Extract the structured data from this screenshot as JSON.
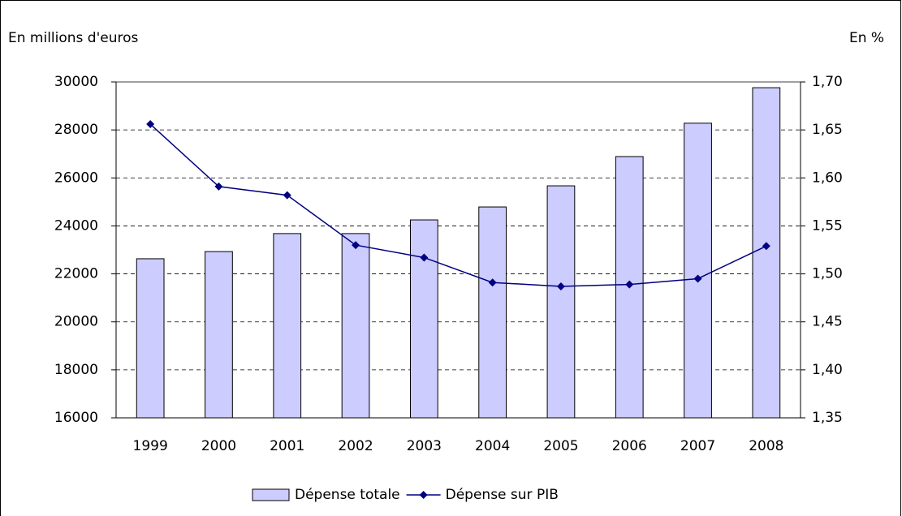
{
  "chart_data": {
    "type": "combo",
    "y_label": "En millions d'euros",
    "y2_label": "En %",
    "categories": [
      "1999",
      "2000",
      "2001",
      "2002",
      "2003",
      "2004",
      "2005",
      "2006",
      "2007",
      "2008"
    ],
    "series": [
      {
        "name": "Dépense totale",
        "type": "bar",
        "color": "#ccccff",
        "values": [
          22630,
          22930,
          23680,
          23680,
          24250,
          24790,
          25670,
          26890,
          28280,
          29760
        ]
      },
      {
        "name": "Dépense sur PIB",
        "type": "line",
        "axis": "y2",
        "color": "#000080",
        "values": [
          1.656,
          1.591,
          1.582,
          1.53,
          1.517,
          1.491,
          1.487,
          1.489,
          1.495,
          1.529
        ]
      }
    ],
    "ylim": [
      16000,
      30000
    ],
    "yticks": [
      16000,
      18000,
      20000,
      22000,
      24000,
      26000,
      28000,
      30000
    ],
    "y2lim": [
      1.35,
      1.7
    ],
    "y2ticks": [
      {
        "value": 1.35,
        "label": "1,35"
      },
      {
        "value": 1.4,
        "label": "1,40"
      },
      {
        "value": 1.45,
        "label": "1,45"
      },
      {
        "value": 1.5,
        "label": "1,50"
      },
      {
        "value": 1.55,
        "label": "1,55"
      },
      {
        "value": 1.6,
        "label": "1,60"
      },
      {
        "value": 1.65,
        "label": "1,65"
      },
      {
        "value": 1.7,
        "label": "1,70"
      }
    ],
    "grid": true,
    "legend": "bottom"
  }
}
